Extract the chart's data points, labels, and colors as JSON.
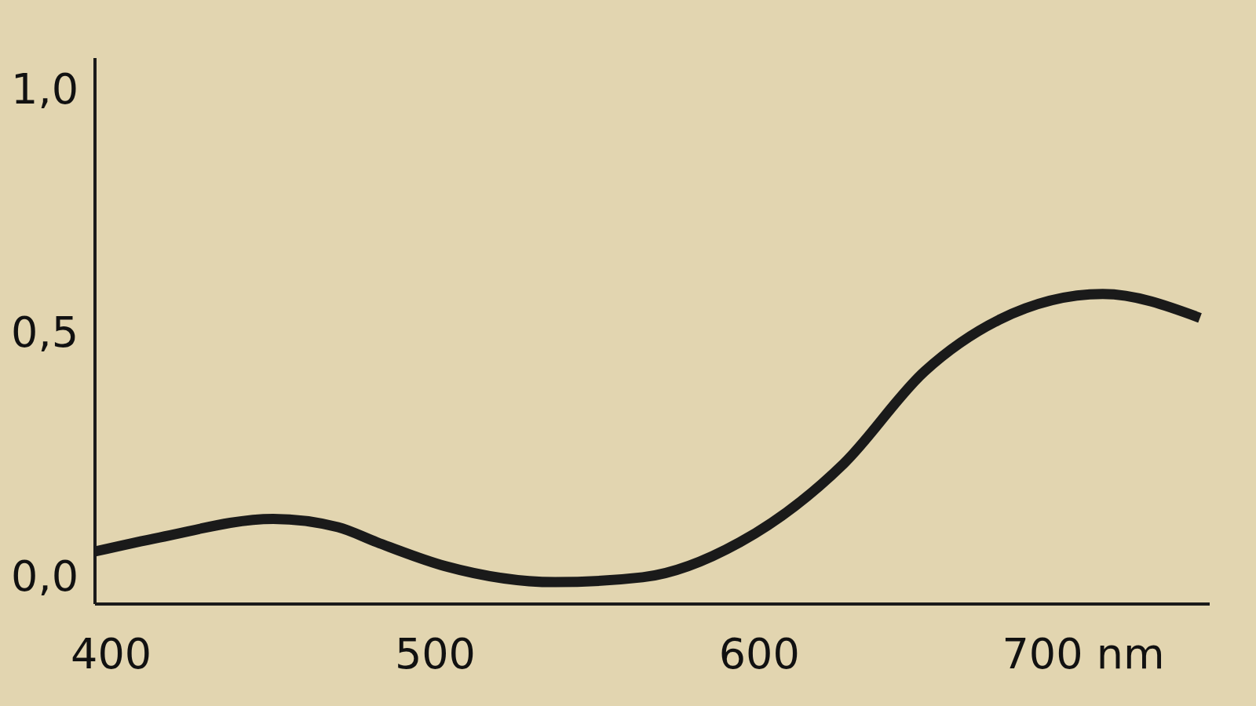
{
  "chart_data": {
    "type": "line",
    "x": [
      395,
      415,
      450,
      470,
      482,
      503,
      537,
      564,
      594,
      626,
      651,
      674,
      706,
      736
    ],
    "series": [
      {
        "color": "#1a1a1a",
        "values": [
          0.05,
          0.079,
          0.117,
          0.1,
          0.069,
          0.02,
          -0.013,
          -0.003,
          0.069,
          0.23,
          0.42,
          0.526,
          0.579,
          0.53
        ]
      }
    ],
    "xlim": [
      395,
      739
    ],
    "ylim": [
      -0.058,
      1.064
    ],
    "xticks": [
      400,
      500,
      600,
      {
        "value": 700,
        "label": "700 nm"
      }
    ],
    "yticks": [
      {
        "value": 0,
        "label": "0,0"
      },
      {
        "value": 0.5,
        "label": "0,5"
      },
      {
        "value": 1,
        "label": "1,0"
      }
    ],
    "grid": false,
    "marker": "none",
    "line_style": "solid"
  }
}
